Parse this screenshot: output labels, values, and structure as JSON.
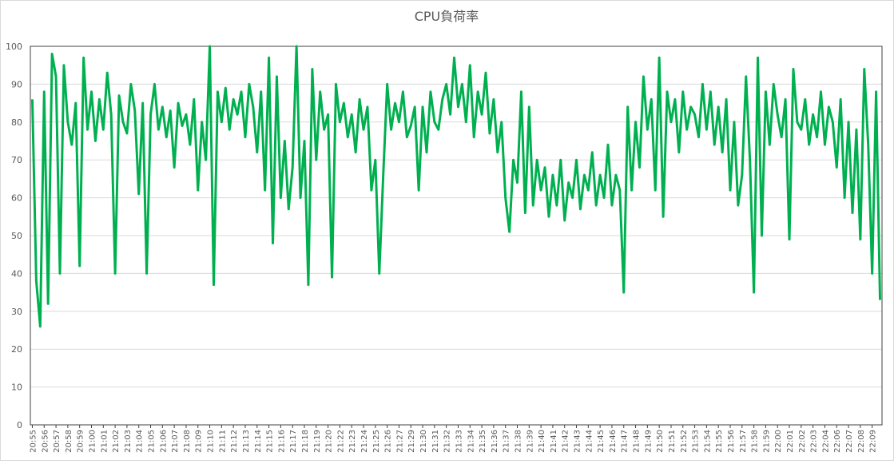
{
  "chart_data": {
    "type": "line",
    "title": "CPU負荷率",
    "categories": [
      "20:55",
      null,
      null,
      "20:56",
      null,
      null,
      "20:57",
      null,
      null,
      "20:58",
      null,
      null,
      "20:59",
      null,
      null,
      "21:00",
      null,
      null,
      "21:01",
      null,
      null,
      "21:02",
      null,
      null,
      "21:03",
      null,
      null,
      "21:04",
      null,
      null,
      "21:05",
      null,
      null,
      "21:06",
      null,
      null,
      "21:07",
      null,
      null,
      "21:08",
      null,
      null,
      "21:09",
      null,
      null,
      "21:10",
      null,
      null,
      "21:11",
      null,
      null,
      "21:12",
      null,
      null,
      "21:13",
      null,
      null,
      "21:14",
      null,
      null,
      "21:15",
      null,
      null,
      "21:16",
      null,
      null,
      "21:17",
      null,
      null,
      "21:18",
      null,
      null,
      "21:19",
      null,
      null,
      "21:20",
      null,
      null,
      "21:22",
      null,
      null,
      "21:23",
      null,
      null,
      "21:24",
      null,
      null,
      "21:25",
      null,
      null,
      "21:26",
      null,
      null,
      "21:27",
      null,
      null,
      "21:29",
      null,
      null,
      "21:30",
      null,
      null,
      "21:31",
      null,
      null,
      "21:32",
      null,
      null,
      "21:33",
      null,
      null,
      "21:34",
      null,
      null,
      "21:35",
      null,
      null,
      "21:36",
      null,
      null,
      "21:37",
      null,
      null,
      "21:38",
      null,
      null,
      "21:39",
      null,
      null,
      "21:40",
      null,
      null,
      "21:41",
      null,
      null,
      "21:42",
      null,
      null,
      "21:43",
      null,
      null,
      "21:44",
      null,
      null,
      "21:45",
      null,
      null,
      "21:46",
      null,
      null,
      "21:47",
      null,
      null,
      "21:48",
      null,
      null,
      "21:49",
      null,
      null,
      "21:50",
      null,
      null,
      "21:51",
      null,
      null,
      "21:52",
      null,
      null,
      "21:53",
      null,
      null,
      "21:54",
      null,
      null,
      "21:55",
      null,
      null,
      "21:56",
      null,
      null,
      "21:57",
      null,
      null,
      "21:58",
      null,
      null,
      "21:59",
      null,
      null,
      "22:00",
      null,
      null,
      "22:01",
      null,
      null,
      "22:02",
      null,
      null,
      "22:03",
      null,
      null,
      "22:04",
      null,
      null,
      "22:06",
      null,
      null,
      "22:07",
      null,
      null,
      "22:08",
      null,
      null,
      "22:09",
      null,
      null
    ],
    "series": [
      {
        "color": "#00b050",
        "values": [
          86,
          38,
          26,
          88,
          32,
          98,
          92,
          40,
          95,
          80,
          74,
          85,
          42,
          97,
          78,
          88,
          75,
          86,
          78,
          93,
          82,
          40,
          87,
          80,
          77,
          90,
          83,
          61,
          85,
          40,
          82,
          90,
          78,
          84,
          76,
          83,
          68,
          85,
          79,
          82,
          74,
          86,
          62,
          80,
          70,
          100,
          37,
          88,
          80,
          89,
          78,
          86,
          82,
          88,
          76,
          90,
          84,
          72,
          88,
          62,
          97,
          48,
          92,
          60,
          75,
          57,
          68,
          100,
          60,
          75,
          37,
          94,
          70,
          88,
          78,
          82,
          39,
          90,
          80,
          85,
          76,
          82,
          72,
          86,
          78,
          84,
          62,
          70,
          40,
          66,
          90,
          78,
          85,
          80,
          88,
          76,
          79,
          84,
          62,
          84,
          72,
          88,
          80,
          78,
          86,
          90,
          82,
          97,
          84,
          90,
          80,
          95,
          76,
          88,
          82,
          93,
          77,
          86,
          72,
          80,
          60,
          51,
          70,
          64,
          88,
          56,
          84,
          58,
          70,
          62,
          68,
          55,
          66,
          58,
          70,
          54,
          64,
          60,
          70,
          57,
          66,
          62,
          72,
          58,
          66,
          60,
          74,
          58,
          66,
          62,
          35,
          84,
          62,
          80,
          68,
          92,
          78,
          86,
          62,
          97,
          55,
          88,
          80,
          86,
          72,
          88,
          78,
          84,
          82,
          76,
          90,
          78,
          88,
          74,
          84,
          72,
          86,
          62,
          80,
          58,
          66,
          92,
          70,
          35,
          97,
          50,
          88,
          74,
          90,
          82,
          76,
          86,
          49,
          94,
          80,
          78,
          86,
          74,
          82,
          76,
          88,
          74,
          84,
          80,
          68,
          86,
          60,
          80,
          56,
          78,
          49,
          94,
          74,
          40,
          88,
          33
        ]
      }
    ],
    "ylim": [
      0,
      100
    ],
    "yticks": [
      0,
      10,
      20,
      30,
      40,
      50,
      60,
      70,
      80,
      90,
      100
    ],
    "grid": true
  }
}
